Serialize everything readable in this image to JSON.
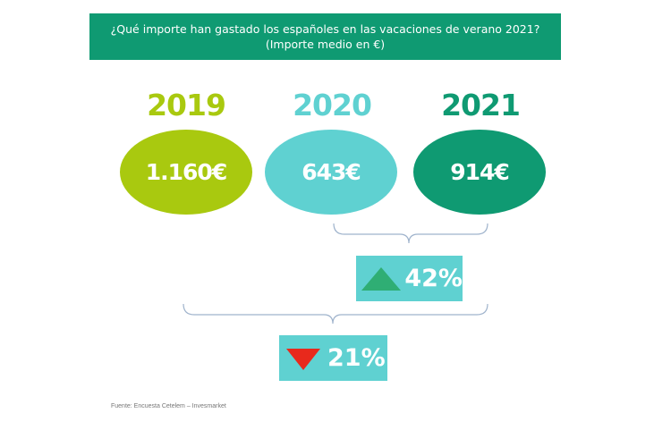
{
  "title": {
    "line1": "¿Qué importe han gastado los españoles en las vacaciones de verano 2021?",
    "line2": "(Importe medio en €)"
  },
  "chart_data": {
    "type": "table",
    "title": "¿Qué importe han gastado los españoles en las vacaciones de verano 2021?",
    "subtitle": "(Importe medio en €)",
    "categories": [
      "2019",
      "2020",
      "2021"
    ],
    "values": [
      1160,
      643,
      914
    ],
    "value_labels": [
      "1.160€",
      "643€",
      "914€"
    ],
    "colors": [
      "#a9c90f",
      "#5fd1d1",
      "#0f9a72"
    ],
    "changes": [
      {
        "from": "2020",
        "to": "2021",
        "label": "42%",
        "direction": "up",
        "color": "#2fae74"
      },
      {
        "from": "2019",
        "to": "2021",
        "label": "21%",
        "direction": "down",
        "color": "#e8291c"
      }
    ]
  },
  "source": "Fuente: Encuesta Cetelem – Invesmarket"
}
